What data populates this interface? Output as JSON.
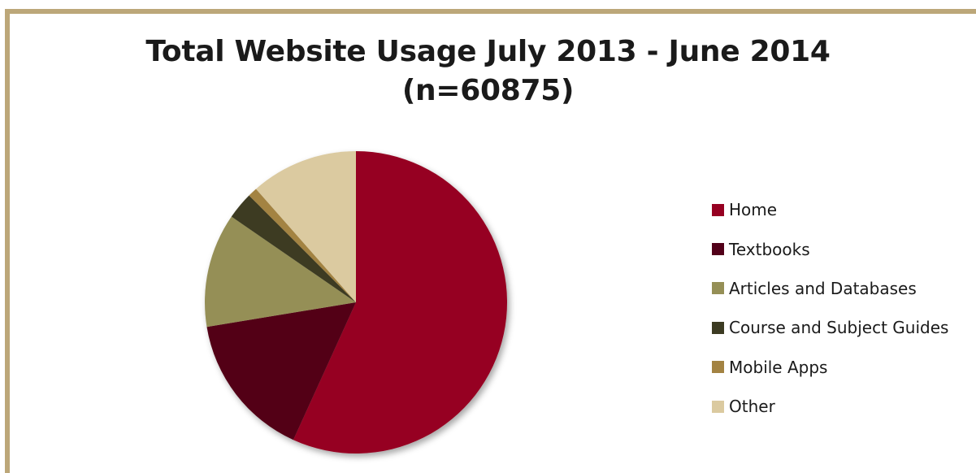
{
  "chart_data": {
    "type": "pie",
    "title": "Total Website Usage July 2013 - June 2014",
    "subtitle": "(n=60875)",
    "legend_position": "right",
    "slices": [
      {
        "label": "Home",
        "percent": 56.8,
        "color": "#960021"
      },
      {
        "label": "Textbooks",
        "percent": 15.6,
        "color": "#520019"
      },
      {
        "label": "Articles and Databases",
        "percent": 12.2,
        "color": "#958f56"
      },
      {
        "label": "Course and Subject Guides",
        "percent": 2.9,
        "color": "#3c3b22"
      },
      {
        "label": "Mobile Apps",
        "percent": 1.0,
        "color": "#a38342"
      },
      {
        "label": "Other",
        "percent": 11.5,
        "color": "#dbcaa0"
      }
    ]
  }
}
